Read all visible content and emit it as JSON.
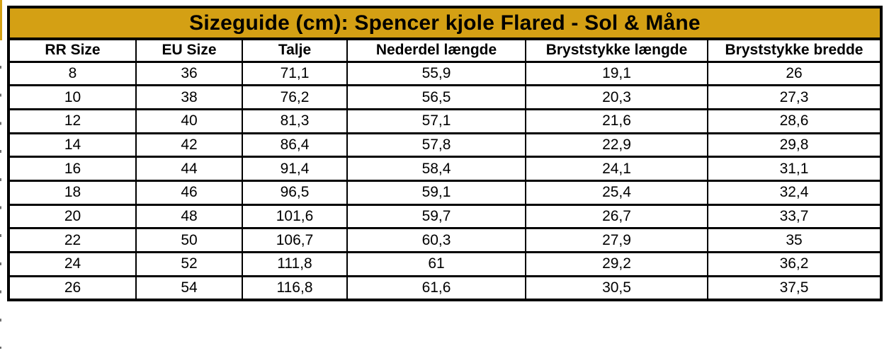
{
  "title": "Sizeguide (cm): Spencer kjole Flared - Sol & Måne",
  "colors": {
    "title_background": "#d4a014",
    "border": "#000000",
    "text": "#000000",
    "background": "#ffffff"
  },
  "table": {
    "columns": [
      "RR Size",
      "EU Size",
      "Talje",
      "Nederdel længde",
      "Bryststykke længde",
      "Bryststykke bredde"
    ],
    "rows": [
      [
        "8",
        "36",
        "71,1",
        "55,9",
        "19,1",
        "26"
      ],
      [
        "10",
        "38",
        "76,2",
        "56,5",
        "20,3",
        "27,3"
      ],
      [
        "12",
        "40",
        "81,3",
        "57,1",
        "21,6",
        "28,6"
      ],
      [
        "14",
        "42",
        "86,4",
        "57,8",
        "22,9",
        "29,8"
      ],
      [
        "16",
        "44",
        "91,4",
        "58,4",
        "24,1",
        "31,1"
      ],
      [
        "18",
        "46",
        "96,5",
        "59,1",
        "25,4",
        "32,4"
      ],
      [
        "20",
        "48",
        "101,6",
        "59,7",
        "26,7",
        "33,7"
      ],
      [
        "22",
        "50",
        "106,7",
        "60,3",
        "27,9",
        "35"
      ],
      [
        "24",
        "52",
        "111,8",
        "61",
        "29,2",
        "36,2"
      ],
      [
        "26",
        "54",
        "116,8",
        "61,6",
        "30,5",
        "37,5"
      ]
    ]
  }
}
